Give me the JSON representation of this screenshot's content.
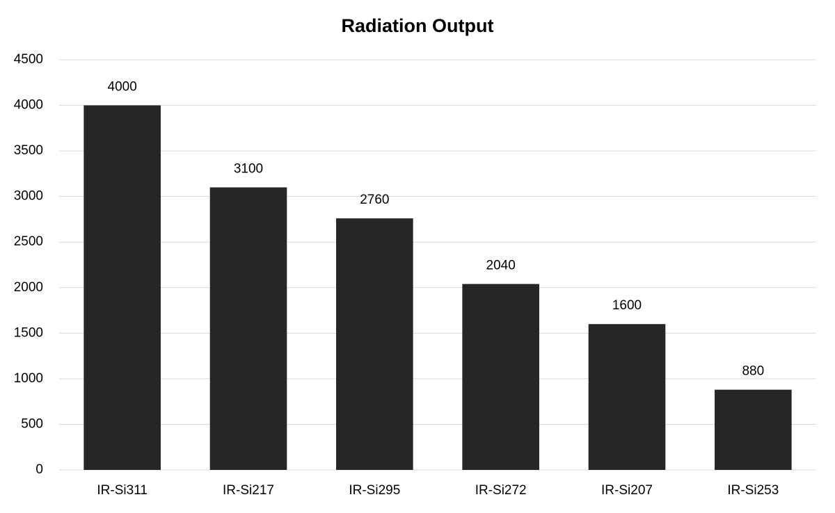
{
  "chart_data": {
    "type": "bar",
    "title": "Radiation Output",
    "categories": [
      "IR-Si311",
      "IR-Si217",
      "IR-Si295",
      "IR-Si272",
      "IR-Si207",
      "IR-Si253"
    ],
    "values": [
      4000,
      3100,
      2760,
      2040,
      1600,
      880
    ],
    "color": "#262626",
    "ylim": [
      0,
      4500
    ],
    "yticks": [
      0,
      500,
      1000,
      1500,
      2000,
      2500,
      3000,
      3500,
      4000,
      4500
    ],
    "grid": true
  }
}
